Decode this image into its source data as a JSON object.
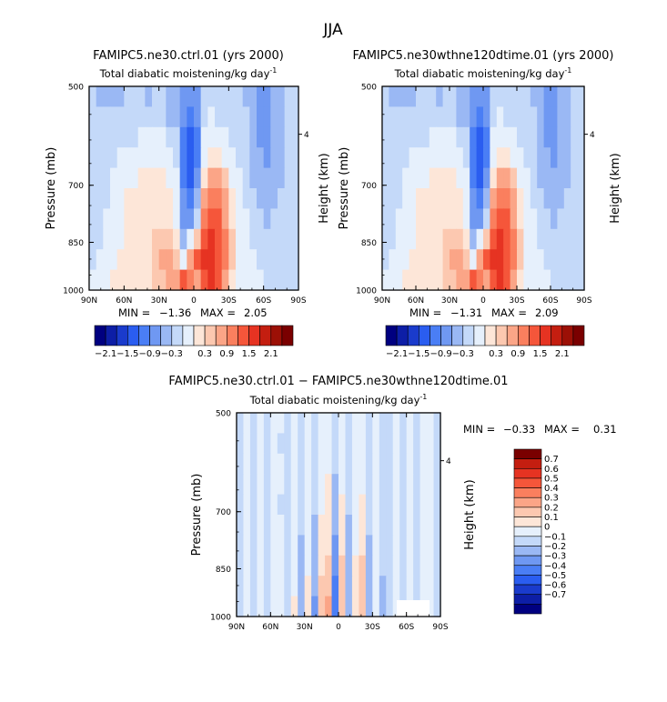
{
  "figure": {
    "title": "JJA"
  },
  "colors": {
    "full_scale": [
      "#000080",
      "#0d1ea6",
      "#1a3bcc",
      "#2a5df0",
      "#4a7ef5",
      "#6f98f2",
      "#9ab8f4",
      "#c4d9f9",
      "#e6f0fc",
      "#fde6d8",
      "#fcc8b0",
      "#fba587",
      "#fa7f5e",
      "#f5563a",
      "#e63322",
      "#c41e10",
      "#9c1006",
      "#7a0000"
    ],
    "diff_scale": [
      "#000080",
      "#0d1ea6",
      "#1a3bcc",
      "#2a5df0",
      "#4a7ef5",
      "#6f98f2",
      "#9ab8f4",
      "#c4d9f9",
      "#e6f0fc",
      "#fde6d8",
      "#fcc8b0",
      "#fba587",
      "#fa7f5e",
      "#f5563a",
      "#e63322",
      "#c41e10",
      "#7a0000"
    ]
  },
  "chart_data": [
    {
      "type": "heatmap",
      "title": "FAMIPC5.ne30.ctrl.01 (yrs 2000)",
      "subtitle": "Total diabatic moistening/kg day",
      "subtitle_exp": "-1",
      "ylabel": "Pressure (mb)",
      "ylabel_right": "Height (km)",
      "xticks": [
        "90N",
        "60N",
        "30N",
        "0",
        "30S",
        "60S",
        "90S"
      ],
      "yticks": [
        500,
        700,
        850,
        1000
      ],
      "height_ticks": [
        "4"
      ],
      "stats": {
        "min_label": "MIN =",
        "min": "−1.36",
        "max_label": "MAX =",
        "max": "2.05"
      },
      "colorbar_labels": [
        "−2.1",
        "−1.5",
        "−0.9",
        "−0.3",
        "0.3",
        "0.9",
        "1.5",
        "2.1"
      ],
      "levels": [
        -2.1,
        -1.8,
        -1.5,
        -1.2,
        -0.9,
        -0.6,
        -0.3,
        0,
        0.3,
        0.6,
        0.9,
        1.2,
        1.5,
        1.8,
        2.1
      ],
      "field": [
        [
          -0.2,
          -0.3,
          -0.3,
          -0.4,
          -0.3,
          -0.2,
          -0.1,
          -0.2,
          -0.3,
          -0.2,
          -0.2,
          -0.3,
          -0.4,
          -0.6,
          -0.8,
          -0.6,
          -0.2,
          -0.1,
          -0.1,
          -0.2,
          -0.1,
          -0.1,
          -0.3,
          -0.5,
          -0.7,
          -0.6,
          -0.4,
          -0.3,
          -0.2,
          -0.2
        ],
        [
          -0.2,
          -0.2,
          -0.2,
          -0.2,
          -0.1,
          -0.1,
          -0.1,
          -0.2,
          -0.2,
          -0.1,
          -0.2,
          -0.3,
          -0.4,
          -0.8,
          -1.0,
          -0.8,
          -0.1,
          0.1,
          0.0,
          -0.1,
          -0.1,
          -0.1,
          -0.2,
          -0.4,
          -0.7,
          -0.7,
          -0.5,
          -0.3,
          -0.2,
          -0.2
        ],
        [
          -0.2,
          -0.2,
          -0.1,
          -0.1,
          0.0,
          0.0,
          0.0,
          0.1,
          0.1,
          0.1,
          0.1,
          0.0,
          -0.1,
          -0.9,
          -1.3,
          -1.0,
          0.1,
          0.3,
          0.2,
          0.1,
          0.0,
          -0.1,
          -0.2,
          -0.4,
          -0.6,
          -0.7,
          -0.5,
          -0.3,
          -0.2,
          -0.2
        ],
        [
          -0.2,
          -0.1,
          -0.1,
          0.0,
          0.1,
          0.2,
          0.2,
          0.2,
          0.3,
          0.3,
          0.3,
          0.2,
          0.0,
          -1.0,
          -1.36,
          -1.0,
          0.3,
          0.6,
          0.5,
          0.3,
          0.1,
          0.0,
          -0.2,
          -0.3,
          -0.5,
          -0.6,
          -0.5,
          -0.3,
          -0.2,
          -0.2
        ],
        [
          -0.2,
          -0.1,
          0.0,
          0.1,
          0.2,
          0.3,
          0.3,
          0.4,
          0.4,
          0.4,
          0.4,
          0.3,
          0.1,
          -1.0,
          -1.3,
          -0.8,
          0.6,
          1.1,
          1.0,
          0.7,
          0.3,
          0.1,
          -0.1,
          -0.3,
          -0.4,
          -0.5,
          -0.4,
          -0.3,
          -0.2,
          -0.2
        ],
        [
          -0.2,
          -0.1,
          0.0,
          0.1,
          0.3,
          0.4,
          0.5,
          0.5,
          0.5,
          0.5,
          0.5,
          0.4,
          0.2,
          -0.8,
          -1.0,
          -0.4,
          1.0,
          1.5,
          1.4,
          1.0,
          0.5,
          0.2,
          0.0,
          -0.2,
          -0.3,
          -0.4,
          -0.3,
          -0.2,
          -0.2,
          -0.2
        ],
        [
          -0.1,
          0.0,
          0.1,
          0.2,
          0.3,
          0.5,
          0.6,
          0.6,
          0.6,
          0.6,
          0.6,
          0.5,
          0.3,
          -0.6,
          -0.6,
          0.0,
          1.3,
          1.7,
          1.6,
          1.2,
          0.6,
          0.3,
          0.1,
          -0.1,
          -0.2,
          -0.3,
          -0.2,
          -0.2,
          -0.1,
          -0.1
        ],
        [
          -0.1,
          0.0,
          0.1,
          0.2,
          0.3,
          0.4,
          0.5,
          0.6,
          0.6,
          0.7,
          0.8,
          0.8,
          0.5,
          -0.3,
          0.2,
          0.8,
          1.6,
          1.9,
          1.7,
          1.3,
          0.7,
          0.3,
          0.1,
          0.0,
          -0.1,
          -0.2,
          -0.2,
          -0.1,
          -0.1,
          -0.1
        ],
        [
          0.0,
          0.1,
          0.2,
          0.3,
          0.4,
          0.4,
          0.4,
          0.5,
          0.6,
          0.8,
          1.0,
          1.1,
          0.8,
          0.3,
          1.2,
          1.6,
          1.9,
          2.05,
          1.8,
          1.3,
          0.7,
          0.3,
          0.1,
          0.1,
          0.0,
          -0.1,
          -0.1,
          -0.1,
          -0.1,
          -0.1
        ],
        [
          0.1,
          0.2,
          0.3,
          0.4,
          0.4,
          0.4,
          0.4,
          0.4,
          0.5,
          0.7,
          0.9,
          1.0,
          1.2,
          1.8,
          1.5,
          1.0,
          1.6,
          1.9,
          1.6,
          1.0,
          0.5,
          0.2,
          0.1,
          0.1,
          0.1,
          0.0,
          -0.1,
          -0.1,
          -0.1,
          -0.1
        ]
      ]
    },
    {
      "type": "heatmap",
      "title": "FAMIPC5.ne30wthne120dtime.01 (yrs 2000)",
      "subtitle": "Total diabatic moistening/kg day",
      "subtitle_exp": "-1",
      "ylabel": "Pressure (mb)",
      "ylabel_right": "Height (km)",
      "xticks": [
        "90N",
        "60N",
        "30N",
        "0",
        "30S",
        "60S",
        "90S"
      ],
      "yticks": [
        500,
        700,
        850,
        1000
      ],
      "height_ticks": [
        "4"
      ],
      "stats": {
        "min_label": "MIN =",
        "min": "−1.31",
        "max_label": "MAX =",
        "max": "2.09"
      },
      "colorbar_labels": [
        "−2.1",
        "−1.5",
        "−0.9",
        "−0.3",
        "0.3",
        "0.9",
        "1.5",
        "2.1"
      ],
      "levels": [
        -2.1,
        -1.8,
        -1.5,
        -1.2,
        -0.9,
        -0.6,
        -0.3,
        0,
        0.3,
        0.6,
        0.9,
        1.2,
        1.5,
        1.8,
        2.1
      ],
      "field": [
        [
          -0.2,
          -0.3,
          -0.3,
          -0.4,
          -0.3,
          -0.2,
          -0.1,
          -0.2,
          -0.3,
          -0.2,
          -0.2,
          -0.3,
          -0.4,
          -0.6,
          -0.8,
          -0.6,
          -0.2,
          -0.1,
          -0.1,
          -0.2,
          -0.1,
          -0.1,
          -0.3,
          -0.5,
          -0.7,
          -0.6,
          -0.4,
          -0.3,
          -0.2,
          -0.2
        ],
        [
          -0.2,
          -0.2,
          -0.2,
          -0.2,
          -0.1,
          -0.1,
          -0.1,
          -0.2,
          -0.2,
          -0.1,
          -0.2,
          -0.3,
          -0.4,
          -0.8,
          -1.0,
          -0.8,
          -0.1,
          0.1,
          0.0,
          -0.1,
          -0.1,
          -0.1,
          -0.2,
          -0.4,
          -0.7,
          -0.7,
          -0.5,
          -0.3,
          -0.2,
          -0.2
        ],
        [
          -0.2,
          -0.2,
          -0.1,
          -0.1,
          0.0,
          0.0,
          0.0,
          0.1,
          0.1,
          0.1,
          0.1,
          0.0,
          -0.1,
          -0.9,
          -1.25,
          -1.0,
          0.1,
          0.3,
          0.2,
          0.1,
          0.0,
          -0.1,
          -0.2,
          -0.4,
          -0.6,
          -0.7,
          -0.5,
          -0.3,
          -0.2,
          -0.2
        ],
        [
          -0.2,
          -0.1,
          -0.1,
          0.0,
          0.1,
          0.2,
          0.2,
          0.2,
          0.3,
          0.3,
          0.3,
          0.2,
          0.0,
          -1.0,
          -1.31,
          -1.0,
          0.3,
          0.6,
          0.5,
          0.3,
          0.1,
          0.0,
          -0.2,
          -0.3,
          -0.5,
          -0.6,
          -0.5,
          -0.3,
          -0.2,
          -0.2
        ],
        [
          -0.2,
          -0.1,
          0.0,
          0.1,
          0.2,
          0.3,
          0.3,
          0.4,
          0.4,
          0.4,
          0.4,
          0.3,
          0.1,
          -1.0,
          -1.25,
          -0.8,
          0.6,
          1.1,
          1.0,
          0.7,
          0.3,
          0.1,
          -0.1,
          -0.3,
          -0.4,
          -0.5,
          -0.4,
          -0.3,
          -0.2,
          -0.2
        ],
        [
          -0.2,
          -0.1,
          0.0,
          0.1,
          0.3,
          0.4,
          0.5,
          0.5,
          0.5,
          0.5,
          0.5,
          0.4,
          0.2,
          -0.8,
          -1.0,
          -0.4,
          1.0,
          1.5,
          1.4,
          1.0,
          0.5,
          0.2,
          0.0,
          -0.2,
          -0.3,
          -0.4,
          -0.3,
          -0.2,
          -0.2,
          -0.2
        ],
        [
          -0.1,
          0.0,
          0.1,
          0.2,
          0.3,
          0.5,
          0.6,
          0.6,
          0.6,
          0.6,
          0.6,
          0.5,
          0.3,
          -0.6,
          -0.6,
          0.0,
          1.3,
          1.7,
          1.6,
          1.2,
          0.6,
          0.3,
          0.1,
          -0.1,
          -0.2,
          -0.3,
          -0.2,
          -0.2,
          -0.1,
          -0.1
        ],
        [
          -0.1,
          0.0,
          0.1,
          0.2,
          0.3,
          0.4,
          0.5,
          0.6,
          0.6,
          0.7,
          0.8,
          0.8,
          0.5,
          -0.3,
          0.2,
          0.8,
          1.6,
          1.9,
          1.7,
          1.3,
          0.7,
          0.3,
          0.1,
          0.0,
          -0.1,
          -0.2,
          -0.2,
          -0.1,
          -0.1,
          -0.1
        ],
        [
          0.0,
          0.1,
          0.2,
          0.3,
          0.4,
          0.4,
          0.4,
          0.5,
          0.6,
          0.8,
          1.0,
          1.1,
          0.8,
          0.3,
          1.2,
          1.6,
          1.9,
          2.09,
          1.8,
          1.3,
          0.7,
          0.3,
          0.1,
          0.1,
          0.0,
          -0.1,
          -0.1,
          -0.1,
          -0.1,
          -0.1
        ],
        [
          0.1,
          0.2,
          0.3,
          0.4,
          0.4,
          0.4,
          0.4,
          0.4,
          0.5,
          0.7,
          0.9,
          1.0,
          1.2,
          1.8,
          1.5,
          1.0,
          1.6,
          1.9,
          1.6,
          1.0,
          0.5,
          0.2,
          0.1,
          0.1,
          0.1,
          0.0,
          -0.1,
          -0.1,
          -0.1,
          -0.1
        ]
      ]
    },
    {
      "type": "heatmap",
      "title": "FAMIPC5.ne30.ctrl.01 − FAMIPC5.ne30wthne120dtime.01",
      "subtitle": "Total diabatic moistening/kg day",
      "subtitle_exp": "-1",
      "ylabel": "Pressure (mb)",
      "ylabel_right": "Height (km)",
      "xticks": [
        "90N",
        "60N",
        "30N",
        "0",
        "30S",
        "60S",
        "90S"
      ],
      "yticks": [
        500,
        700,
        850,
        1000
      ],
      "height_ticks": [
        "4"
      ],
      "stats": {
        "min_label": "MIN =",
        "min": "−0.33",
        "max_label": "MAX =",
        "max": "0.31"
      },
      "colorbar_labels": [
        "0.7",
        "0.6",
        "0.5",
        "0.4",
        "0.3",
        "0.2",
        "0.1",
        "0",
        "−0.1",
        "−0.2",
        "−0.3",
        "−0.4",
        "−0.5",
        "−0.6",
        "−0.7"
      ],
      "levels": [
        -0.7,
        -0.6,
        -0.5,
        -0.4,
        -0.3,
        -0.2,
        -0.1,
        0,
        0.1,
        0.2,
        0.3,
        0.4,
        0.5,
        0.6,
        0.7
      ],
      "field": [
        [
          -0.02,
          0.03,
          -0.03,
          0.02,
          -0.04,
          0.03,
          0.02,
          -0.02,
          0.04,
          -0.03,
          0.02,
          -0.04,
          0.03,
          0.05,
          -0.05,
          0.04,
          -0.03,
          0.02,
          0.04,
          -0.02,
          0.03,
          -0.04,
          -0.03,
          0.02,
          -0.02,
          0.03,
          -0.03,
          0.02,
          0.03,
          -0.02
        ],
        [
          -0.03,
          0.02,
          -0.04,
          0.03,
          -0.03,
          0.04,
          -0.02,
          -0.03,
          0.05,
          -0.04,
          0.03,
          -0.05,
          0.04,
          0.06,
          -0.07,
          0.05,
          -0.04,
          0.03,
          0.05,
          -0.03,
          0.04,
          -0.05,
          -0.02,
          0.03,
          -0.03,
          0.02,
          -0.04,
          0.03,
          0.02,
          -0.03
        ],
        [
          -0.02,
          0.04,
          -0.03,
          0.02,
          -0.04,
          0.03,
          0.03,
          -0.04,
          0.04,
          -0.05,
          0.04,
          -0.04,
          0.05,
          0.08,
          -0.09,
          0.07,
          -0.05,
          0.04,
          0.06,
          -0.04,
          0.03,
          -0.04,
          -0.03,
          0.04,
          -0.02,
          0.03,
          -0.03,
          0.02,
          0.03,
          -0.02
        ],
        [
          -0.03,
          0.03,
          -0.02,
          0.03,
          -0.05,
          0.04,
          0.02,
          -0.03,
          0.05,
          -0.06,
          0.05,
          -0.06,
          0.07,
          0.11,
          -0.12,
          0.09,
          -0.06,
          0.05,
          0.08,
          -0.05,
          0.04,
          -0.05,
          -0.04,
          0.03,
          -0.03,
          0.04,
          -0.04,
          0.03,
          0.02,
          -0.03
        ],
        [
          -0.02,
          0.02,
          -0.04,
          0.04,
          -0.03,
          0.05,
          -0.03,
          -0.04,
          0.06,
          -0.07,
          0.06,
          -0.08,
          0.09,
          0.13,
          -0.15,
          0.12,
          -0.08,
          0.06,
          0.11,
          -0.07,
          0.05,
          -0.06,
          -0.03,
          0.04,
          -0.04,
          0.03,
          -0.03,
          0.02,
          0.03,
          -0.02
        ],
        [
          -0.03,
          0.04,
          -0.03,
          0.03,
          -0.04,
          0.04,
          0.03,
          -0.05,
          0.07,
          -0.09,
          0.08,
          -0.1,
          0.12,
          0.16,
          -0.18,
          0.15,
          -0.1,
          0.08,
          0.14,
          -0.08,
          0.06,
          -0.07,
          -0.04,
          0.05,
          -0.03,
          0.04,
          -0.04,
          0.03,
          0.02,
          -0.03
        ],
        [
          -0.02,
          0.03,
          -0.04,
          0.02,
          -0.05,
          0.03,
          0.04,
          -0.06,
          0.08,
          -0.1,
          0.09,
          -0.13,
          0.15,
          0.2,
          -0.22,
          0.19,
          -0.12,
          0.09,
          0.18,
          -0.1,
          0.07,
          -0.08,
          -0.05,
          0.04,
          -0.04,
          0.03,
          -0.03,
          0.02,
          0.03,
          -0.02
        ],
        [
          -0.03,
          0.04,
          -0.03,
          0.04,
          -0.04,
          0.05,
          0.03,
          -0.07,
          0.09,
          -0.12,
          0.1,
          -0.16,
          0.18,
          0.24,
          -0.27,
          0.23,
          -0.15,
          0.11,
          0.22,
          -0.12,
          0.08,
          -0.09,
          -0.05,
          0.05,
          -0.03,
          0.04,
          -0.04,
          0.03,
          0.02,
          -0.03
        ],
        [
          -0.02,
          0.03,
          -0.05,
          0.03,
          -0.05,
          0.04,
          0.04,
          -0.08,
          0.1,
          -0.14,
          0.12,
          -0.19,
          0.21,
          0.27,
          -0.31,
          0.26,
          -0.17,
          0.13,
          0.25,
          -0.14,
          0.09,
          -0.1,
          -0.06,
          0.06,
          -0.04,
          0.03,
          -0.03,
          0.02,
          0.03,
          -0.02
        ],
        [
          -0.03,
          0.04,
          -0.04,
          0.04,
          -0.04,
          0.05,
          0.03,
          -0.09,
          0.11,
          -0.16,
          0.13,
          -0.22,
          0.24,
          0.31,
          -0.33,
          0.28,
          -0.19,
          0.14,
          0.27,
          -0.15,
          0.1,
          -0.11,
          -0.06,
          0.05,
          -0.03,
          0.04,
          -0.04,
          0.03,
          0.02,
          -0.03
        ]
      ]
    }
  ]
}
